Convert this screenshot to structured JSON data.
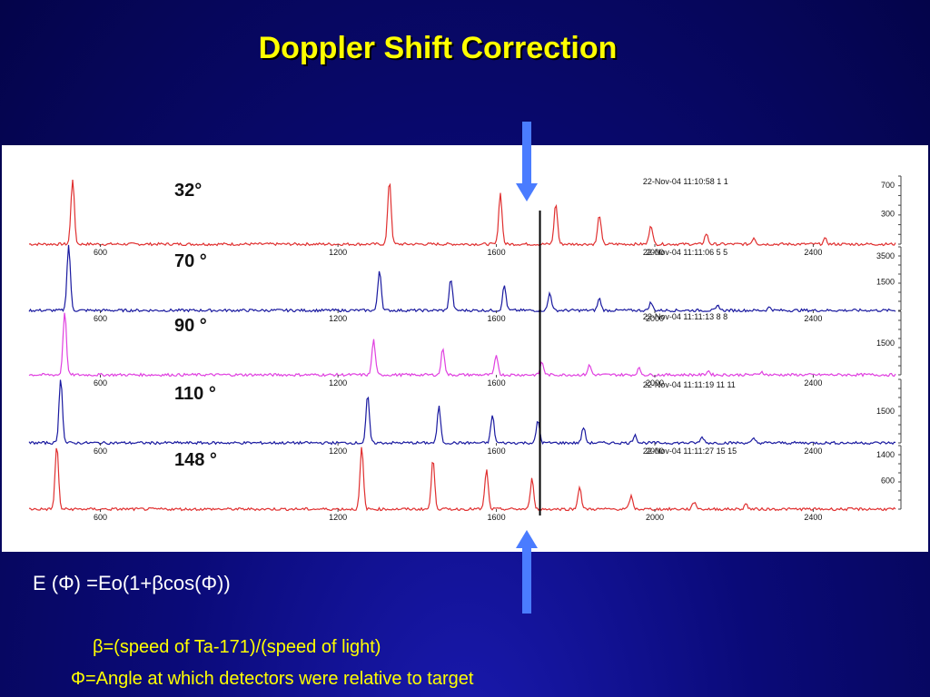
{
  "title": "Doppler Shift Correction",
  "formula": "E (Φ) =Eo(1+βcos(Φ))",
  "beta_line": "β=(speed of Ta-171)/(speed of light)",
  "phi_line": "Φ=Angle at which detectors were relative to target",
  "colors": {
    "title": "#ffff00",
    "arrow": "#4a7cff",
    "red": "#e03030",
    "blue": "#1a1aa0",
    "magenta": "#e040e0",
    "marker": "#000000"
  },
  "chart_data": {
    "type": "line",
    "x_ticks": [
      "600",
      "1200",
      "1600",
      "2000",
      "2400"
    ],
    "x_tick_values": [
      600,
      1200,
      1600,
      2000,
      2400
    ],
    "xlim": [
      420,
      2610
    ],
    "marker_x": 1710,
    "panels": [
      {
        "label": "32°",
        "header": "22-Nov-04 11:10:58     1   1",
        "color": "#e03030",
        "y_ticks": [
          "700",
          "300"
        ],
        "peaks": [
          [
            530,
            1.0
          ],
          [
            1330,
            0.98
          ],
          [
            1610,
            0.78
          ],
          [
            1750,
            0.62
          ],
          [
            1860,
            0.45
          ],
          [
            1990,
            0.3
          ],
          [
            2130,
            0.16
          ],
          [
            2250,
            0.1
          ],
          [
            2430,
            0.08
          ]
        ]
      },
      {
        "label": "70 °",
        "header": "22-Nov-04 11:11:06     5   5",
        "color": "#1a1aa0",
        "y_ticks": [
          "3500",
          "1500"
        ],
        "peaks": [
          [
            520,
            1.0
          ],
          [
            1305,
            0.62
          ],
          [
            1485,
            0.48
          ],
          [
            1620,
            0.38
          ],
          [
            1735,
            0.27
          ],
          [
            1860,
            0.18
          ],
          [
            1990,
            0.12
          ],
          [
            2160,
            0.07
          ],
          [
            2290,
            0.05
          ]
        ]
      },
      {
        "label": "90 °",
        "header": "22-Nov-04 11:11:13     8   8",
        "color": "#e040e0",
        "y_ticks": [
          "1500"
        ],
        "peaks": [
          [
            510,
            1.0
          ],
          [
            1290,
            0.55
          ],
          [
            1465,
            0.42
          ],
          [
            1600,
            0.3
          ],
          [
            1715,
            0.2
          ],
          [
            1835,
            0.15
          ],
          [
            1960,
            0.1
          ],
          [
            2135,
            0.06
          ],
          [
            2270,
            0.05
          ]
        ]
      },
      {
        "label": "110 °",
        "header": "22-Nov-04 11:11:19     11  11",
        "color": "#1a1aa0",
        "y_ticks": [
          "1500"
        ],
        "peaks": [
          [
            500,
            1.0
          ],
          [
            1275,
            0.72
          ],
          [
            1455,
            0.55
          ],
          [
            1590,
            0.42
          ],
          [
            1705,
            0.34
          ],
          [
            1820,
            0.24
          ],
          [
            1950,
            0.13
          ],
          [
            2120,
            0.09
          ],
          [
            2250,
            0.06
          ]
        ]
      },
      {
        "label": "148 °",
        "header": "22-Nov-04 11:11:27     15  15",
        "color": "#e03030",
        "y_ticks": [
          "1400",
          "600"
        ],
        "peaks": [
          [
            490,
            1.0
          ],
          [
            1260,
            0.97
          ],
          [
            1440,
            0.78
          ],
          [
            1575,
            0.62
          ],
          [
            1690,
            0.48
          ],
          [
            1810,
            0.36
          ],
          [
            1940,
            0.2
          ],
          [
            2100,
            0.12
          ],
          [
            2230,
            0.08
          ]
        ]
      }
    ]
  }
}
